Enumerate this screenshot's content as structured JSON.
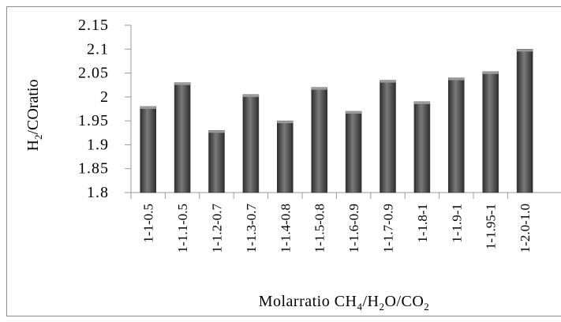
{
  "chart_data": {
    "type": "bar",
    "title": "",
    "xlabel": "Molarratio CH4/H2O/CO2",
    "ylabel": "H2/COratio",
    "ylim": [
      1.8,
      2.15
    ],
    "yticks": [
      "2.15",
      "2.1",
      "2.05",
      "2",
      "1.95",
      "1.9",
      "1.85",
      "1.8"
    ],
    "grid": "none",
    "categories": [
      "1-1-0.5",
      "1-1.1-0.5",
      "1-1.2-0.7",
      "1-1.3-0.7",
      "1-1.4-0.8",
      "1-1.5-0.8",
      "1-1.6-0.9",
      "1-1.7-0.9",
      "1-1.8-1",
      "1-1.9-1",
      "1-1.95-1",
      "1-2.0-1.0"
    ],
    "values": [
      1.98,
      2.03,
      1.93,
      2.005,
      1.95,
      2.02,
      1.97,
      2.035,
      1.99,
      2.04,
      2.053,
      2.1
    ],
    "colors": {
      "bar": "#555555",
      "bar_dark": "#2e2e2e",
      "bar_light": "#7a7a7a",
      "axis": "#9a9a9a",
      "border": "#8c8c8c"
    }
  }
}
